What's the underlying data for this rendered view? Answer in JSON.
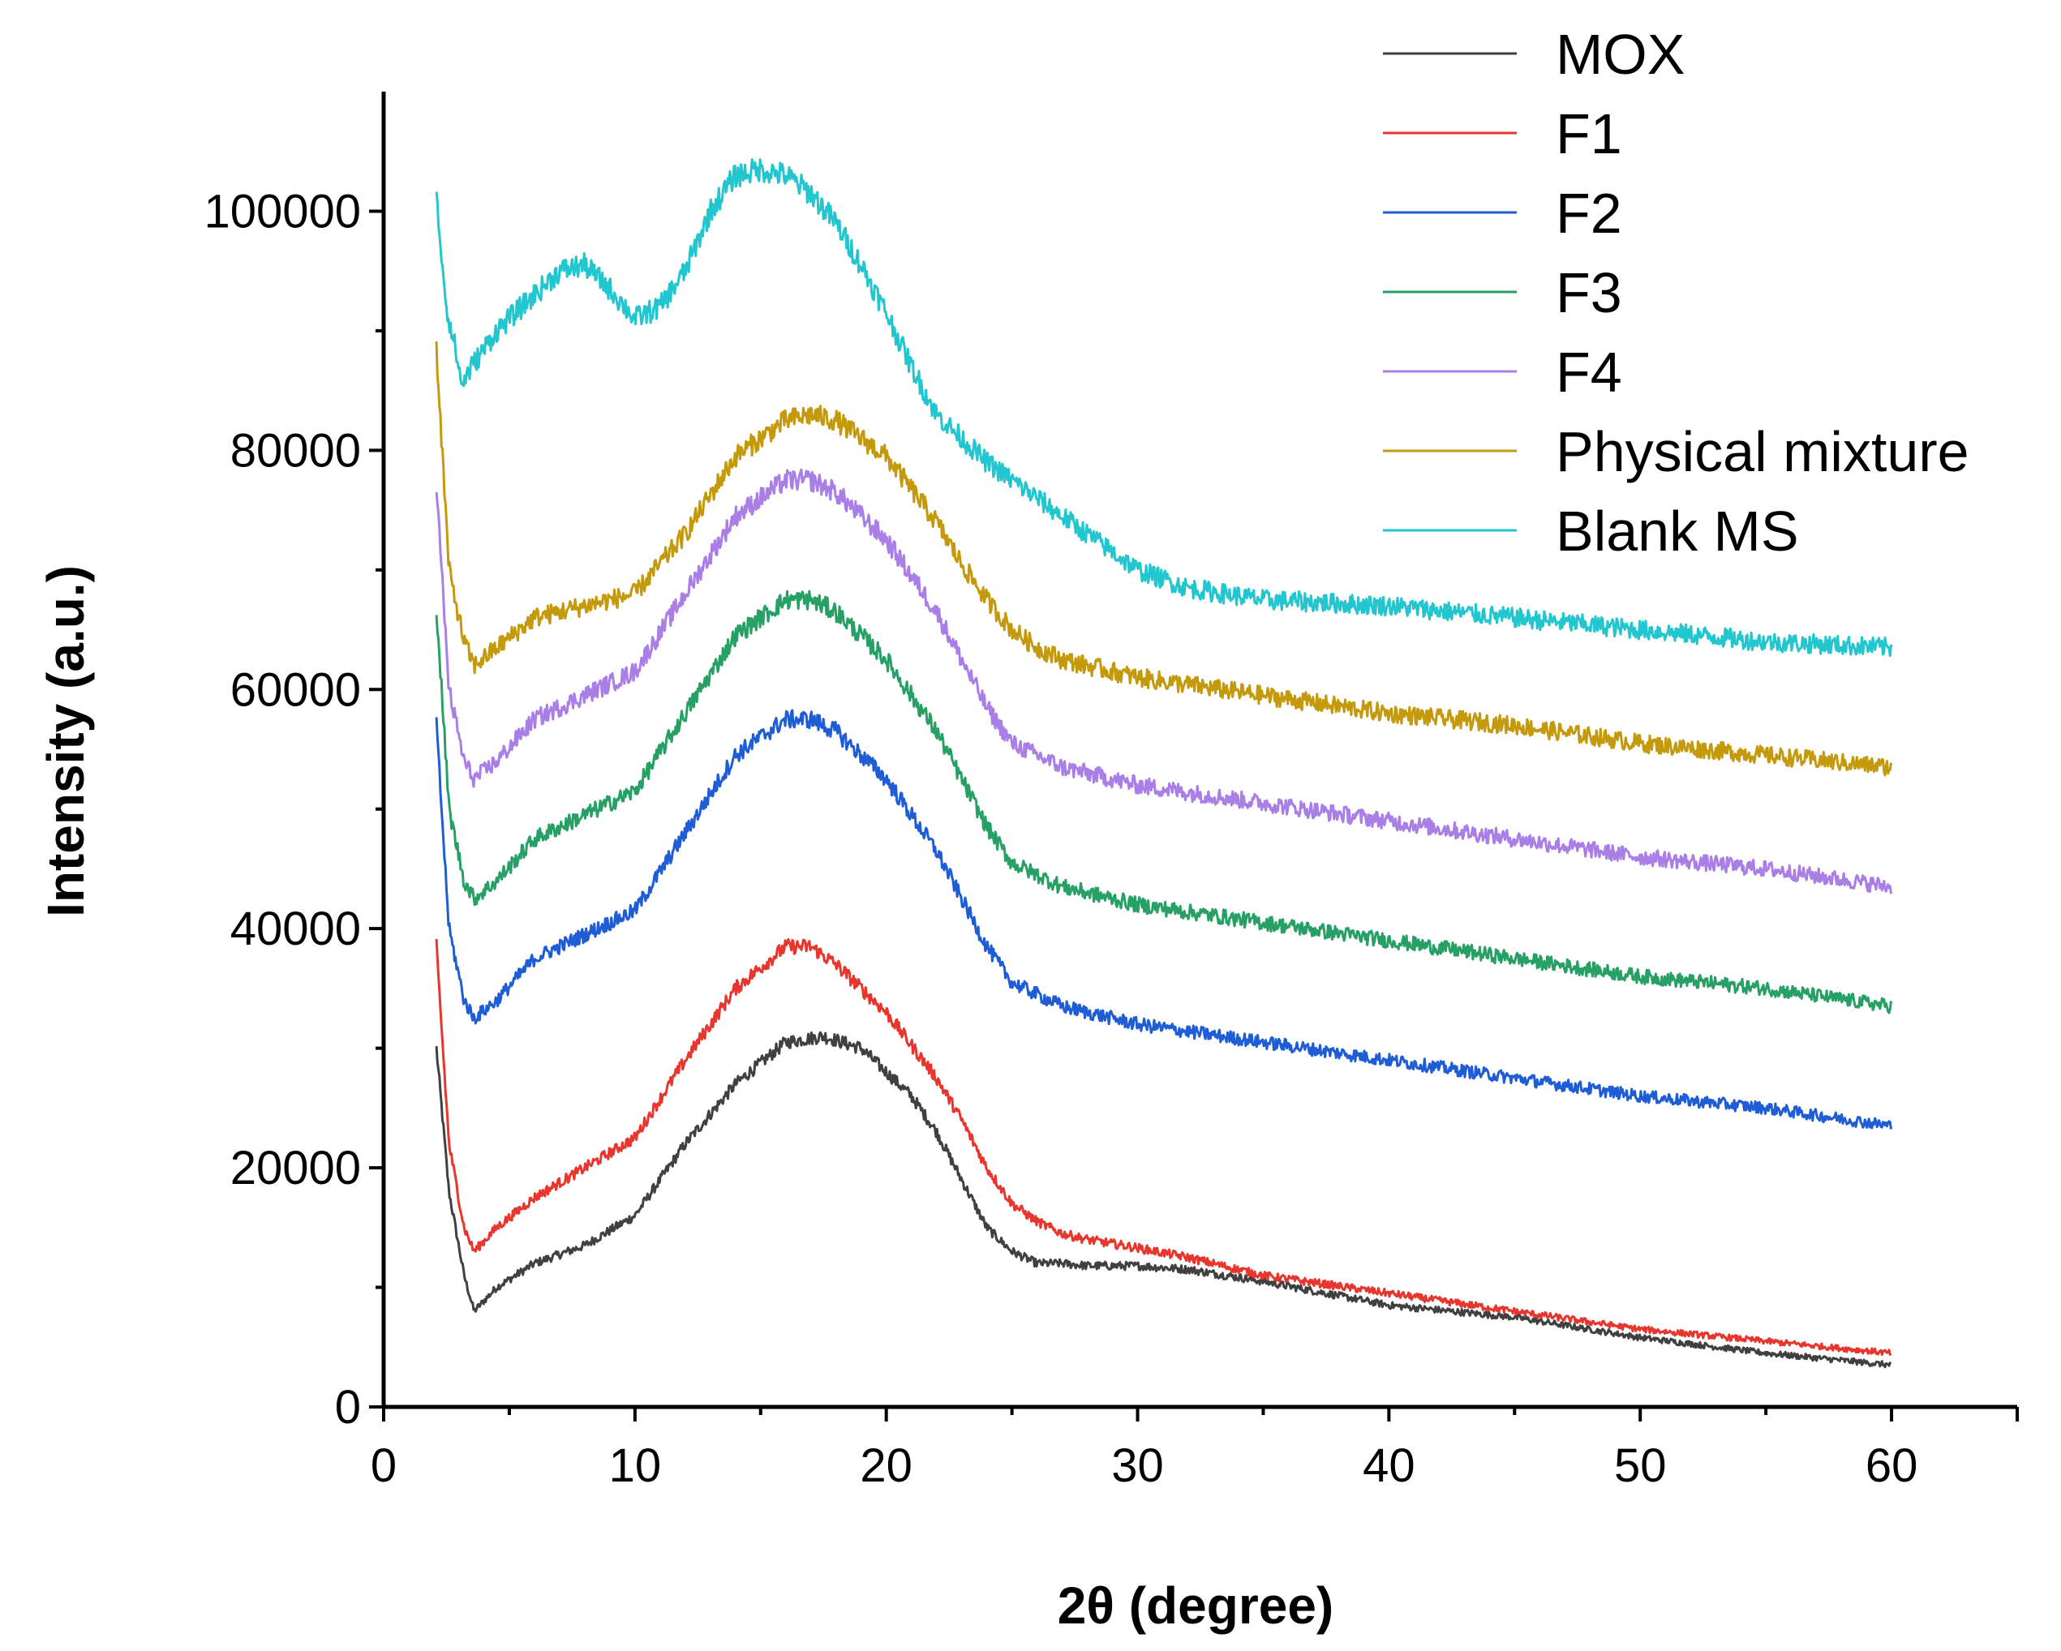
{
  "chart_data": {
    "type": "line",
    "title": "",
    "xlabel": "2θ (degree)",
    "ylabel": "Intensity (a.u.)",
    "xlim": [
      0,
      65
    ],
    "ylim": [
      0,
      110000
    ],
    "xticks": [
      0,
      10,
      20,
      30,
      40,
      50,
      60
    ],
    "yticks": [
      0,
      20000,
      40000,
      60000,
      80000,
      100000
    ],
    "grid": false,
    "legend_position": "top-right",
    "series": [
      {
        "name": "MOX",
        "color": "#404040",
        "x": [
          2.1,
          2.6,
          3.2,
          3.6,
          4.5,
          6,
          8,
          10,
          12,
          14,
          16,
          17.5,
          19,
          21,
          22,
          23,
          24,
          25,
          26,
          27,
          28,
          30,
          32,
          35,
          40,
          45,
          50,
          55,
          60
        ],
        "y": [
          30000,
          18000,
          11000,
          8000,
          10000,
          12000,
          13500,
          16000,
          22000,
          27000,
          30500,
          31000,
          30000,
          26000,
          23000,
          19000,
          15000,
          13000,
          12000,
          12000,
          11800,
          11800,
          11500,
          10500,
          8500,
          7500,
          5800,
          4500,
          3500
        ]
      },
      {
        "name": "F1",
        "color": "#e8352d",
        "x": [
          2.1,
          2.6,
          3.2,
          3.6,
          4.5,
          6,
          8,
          10,
          12,
          14,
          16,
          17,
          18,
          20,
          22,
          23,
          24,
          25,
          26,
          27,
          28,
          30,
          32,
          35,
          40,
          45,
          50,
          55,
          60
        ],
        "y": [
          38500,
          22000,
          15000,
          13000,
          15000,
          17500,
          20000,
          22500,
          29000,
          35000,
          38500,
          38500,
          37000,
          33000,
          27500,
          24000,
          20000,
          17000,
          15500,
          14500,
          14000,
          13300,
          12500,
          11000,
          9500,
          8000,
          6500,
          5500,
          4500
        ]
      },
      {
        "name": "F2",
        "color": "#1f5dd6",
        "x": [
          2.1,
          2.6,
          3.2,
          3.6,
          4.5,
          6,
          8,
          10,
          12,
          14,
          16,
          17,
          18,
          20,
          22,
          23,
          24,
          25,
          26,
          27,
          28,
          30,
          35,
          40,
          45,
          50,
          55,
          60
        ],
        "y": [
          57000,
          40000,
          34000,
          32500,
          34000,
          37500,
          39500,
          41500,
          48000,
          54500,
          57500,
          57500,
          56500,
          52500,
          46500,
          42500,
          38500,
          35500,
          34500,
          33500,
          33000,
          32000,
          30500,
          29000,
          27500,
          26000,
          25000,
          23500
        ]
      },
      {
        "name": "F3",
        "color": "#27a065",
        "x": [
          2.1,
          2.6,
          3.2,
          3.6,
          4.5,
          6,
          8,
          10,
          12,
          14,
          16,
          17,
          18,
          20,
          22,
          23,
          24,
          25,
          26,
          27,
          28,
          30,
          35,
          40,
          45,
          50,
          55,
          60
        ],
        "y": [
          67000,
          50000,
          44000,
          42500,
          44000,
          47500,
          49500,
          51500,
          58000,
          64500,
          67500,
          67500,
          66500,
          62500,
          56500,
          52500,
          48500,
          45500,
          44500,
          43500,
          43000,
          42000,
          40500,
          39000,
          37500,
          36000,
          35000,
          33500
        ]
      },
      {
        "name": "F4",
        "color": "#a97ee6",
        "x": [
          2.1,
          2.6,
          3.2,
          3.6,
          4.5,
          6,
          8,
          10,
          12,
          14,
          16,
          17,
          18,
          20,
          22,
          23,
          24,
          25,
          26,
          27,
          28,
          30,
          35,
          40,
          45,
          50,
          55,
          60
        ],
        "y": [
          77000,
          60000,
          54000,
          52500,
          54000,
          57500,
          59500,
          61500,
          68000,
          74500,
          77500,
          77500,
          76500,
          72500,
          66500,
          62500,
          58500,
          55500,
          54500,
          53500,
          53000,
          52000,
          50500,
          49000,
          47500,
          46000,
          45000,
          43500
        ]
      },
      {
        "name": "Physical mixture",
        "color": "#c49a0c",
        "x": [
          2.1,
          2.6,
          3.2,
          3.6,
          4.5,
          6,
          8,
          10,
          12,
          14,
          16,
          17,
          18,
          20,
          22,
          23,
          24,
          25,
          26,
          27,
          28,
          30,
          35,
          40,
          45,
          50,
          55,
          60
        ],
        "y": [
          88500,
          70000,
          64000,
          62000,
          63500,
          66000,
          67000,
          68000,
          73000,
          79500,
          82500,
          83000,
          82500,
          79500,
          74000,
          70500,
          67500,
          65000,
          63500,
          62500,
          62000,
          61000,
          59500,
          58000,
          57000,
          55500,
          54500,
          53500
        ]
      },
      {
        "name": "Blank MS",
        "color": "#22c6cf",
        "x": [
          2.1,
          2.5,
          2.9,
          3.1,
          3.5,
          4.5,
          6,
          7,
          8,
          9,
          10,
          11,
          12,
          13,
          14,
          15,
          16,
          17,
          18,
          19,
          20,
          21,
          22,
          24,
          26,
          28,
          30,
          32,
          35,
          40,
          45,
          50,
          55,
          60
        ],
        "y": [
          101000,
          92000,
          88000,
          85500,
          87000,
          90000,
          93000,
          95000,
          95500,
          93500,
          91000,
          92000,
          95000,
          100000,
          103000,
          103500,
          103000,
          101500,
          99000,
          95500,
          91500,
          87000,
          83000,
          79000,
          76000,
          73000,
          70000,
          68500,
          67500,
          67000,
          66000,
          65000,
          64000,
          63500
        ]
      }
    ]
  }
}
